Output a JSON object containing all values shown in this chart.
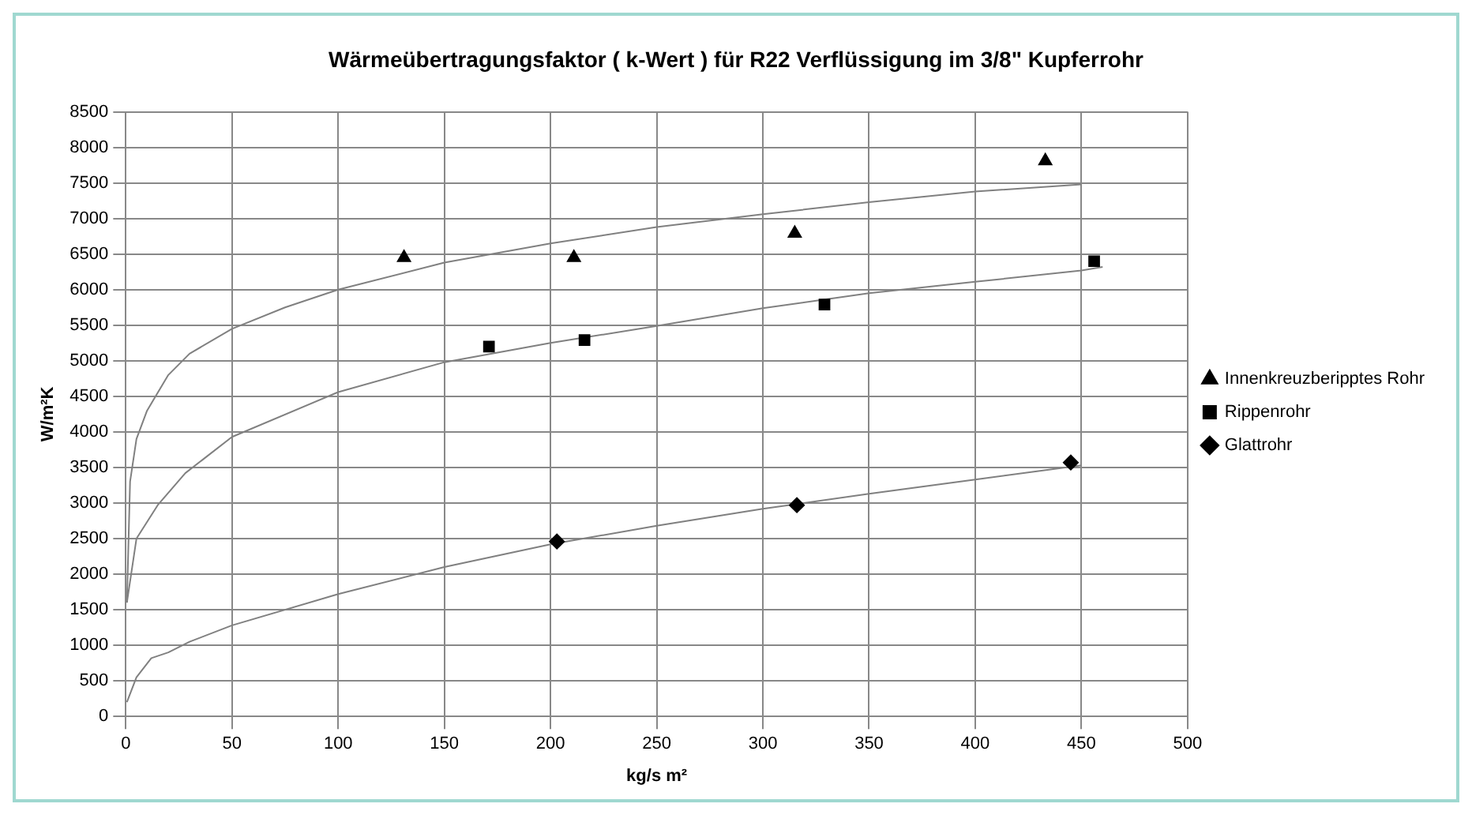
{
  "chart_data": {
    "type": "scatter",
    "title": "Wärmeübertragungsfaktor ( k-Wert ) für R22 Verflüssigung im 3/8\" Kupferrohr",
    "xlabel": "kg/s m²",
    "ylabel": "W/m²K",
    "xlim": [
      0,
      500
    ],
    "xticks": [
      0,
      50,
      100,
      150,
      200,
      250,
      300,
      350,
      400,
      450,
      500
    ],
    "ylim": [
      0,
      8500
    ],
    "yticks": [
      0,
      500,
      1000,
      1500,
      2000,
      2500,
      3000,
      3500,
      4000,
      4500,
      5000,
      5500,
      6000,
      6500,
      7000,
      7500,
      8000,
      8500
    ],
    "grid": true,
    "legend": "right",
    "series": [
      {
        "name": "Innenkreuzberipptes Rohr",
        "type": "scatter",
        "marker": "triangle",
        "color": "#000000",
        "x": [
          131,
          211,
          315,
          433
        ],
        "values": [
          6450,
          6450,
          6790,
          7810
        ]
      },
      {
        "name": "Rippenrohr",
        "type": "scatter",
        "marker": "square",
        "color": "#000000",
        "x": [
          171,
          216,
          329,
          456
        ],
        "values": [
          5200,
          5290,
          5790,
          6400
        ]
      },
      {
        "name": "Glattrohr",
        "type": "scatter",
        "marker": "diamond",
        "color": "#000000",
        "x": [
          203,
          316,
          445
        ],
        "values": [
          2460,
          2970,
          3570
        ]
      },
      {
        "type": "line",
        "marker": "none",
        "line_style": "solid",
        "color": "#808080",
        "x": [
          0.5,
          2,
          5,
          10,
          20,
          30,
          50,
          75,
          100,
          150,
          200,
          250,
          300,
          350,
          400,
          450
        ],
        "values": [
          1600,
          3300,
          3900,
          4300,
          4800,
          5100,
          5450,
          5750,
          6000,
          6380,
          6650,
          6880,
          7060,
          7230,
          7380,
          7480
        ]
      },
      {
        "type": "line",
        "marker": "none",
        "line_style": "solid",
        "color": "#808080",
        "x": [
          0.5,
          5,
          15,
          28,
          50,
          100,
          150,
          200,
          250,
          300,
          350,
          400,
          450,
          460
        ],
        "values": [
          1600,
          2500,
          2970,
          3420,
          3930,
          4560,
          4980,
          5250,
          5490,
          5740,
          5950,
          6110,
          6270,
          6320
        ]
      },
      {
        "type": "line",
        "marker": "none",
        "line_style": "solid",
        "color": "#808080",
        "x": [
          0.5,
          5,
          12,
          20,
          30,
          50,
          100,
          150,
          200,
          250,
          300,
          350,
          400,
          450
        ],
        "values": [
          200,
          550,
          820,
          900,
          1050,
          1280,
          1720,
          2100,
          2420,
          2680,
          2920,
          3130,
          3330,
          3530
        ]
      }
    ]
  }
}
